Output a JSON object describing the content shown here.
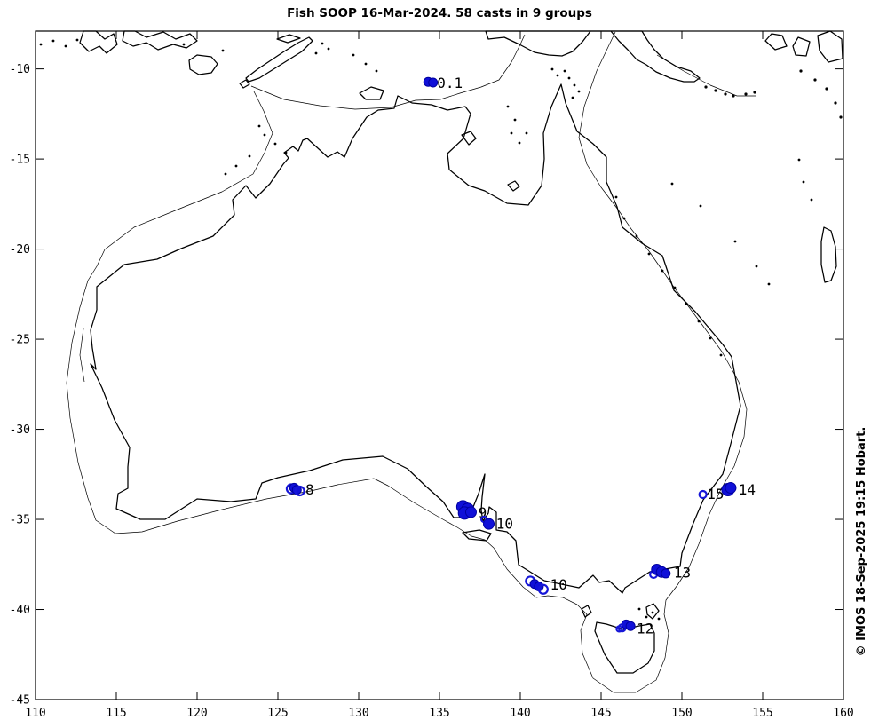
{
  "title": "Fish SOOP 16-Mar-2024. 58 casts in 9 groups",
  "credit": "© IMOS 18-Sep-2025 19:15 Hobart.",
  "chart_data": {
    "type": "scatter",
    "title": "Fish SOOP 16-Mar-2024. 58 casts in 9 groups",
    "xlabel": "",
    "ylabel": "",
    "xlim": [
      110,
      160
    ],
    "ylim": [
      -45,
      -7.9
    ],
    "xticks": [
      110,
      115,
      120,
      125,
      130,
      135,
      140,
      145,
      150,
      155,
      160
    ],
    "yticks": [
      -45,
      -40,
      -35,
      -30,
      -25,
      -20,
      -15,
      -10
    ],
    "grid": false,
    "legend": "none",
    "marker_fill_color": "#1010d8",
    "marker_edge_color": "#0000a0",
    "marker_open_color": "#1616d8",
    "label_color": "#000000",
    "groups": [
      {
        "label": "0.1",
        "label_at": [
          134.85,
          -10.78
        ],
        "points": [
          [
            134.3,
            -10.72,
            5,
            false
          ],
          [
            134.6,
            -10.76,
            5,
            false
          ]
        ]
      },
      {
        "label": "8",
        "label_at": [
          126.7,
          -33.34
        ],
        "points": [
          [
            125.82,
            -33.3,
            5,
            true
          ],
          [
            126.0,
            -33.24,
            5,
            false
          ],
          [
            126.17,
            -33.36,
            5,
            false
          ],
          [
            126.35,
            -33.42,
            5,
            true
          ]
        ]
      },
      {
        "label": "9",
        "label_at": [
          137.4,
          -34.62
        ],
        "points": [
          [
            136.45,
            -34.3,
            7,
            false
          ],
          [
            136.75,
            -34.45,
            7,
            false
          ],
          [
            136.55,
            -34.65,
            7,
            false
          ],
          [
            136.95,
            -34.6,
            6,
            false
          ]
        ]
      },
      {
        "label": "10",
        "label_at": [
          138.5,
          -35.25
        ],
        "points": [
          [
            137.75,
            -35.0,
            3,
            true
          ],
          [
            138.05,
            -35.25,
            6,
            false
          ]
        ]
      },
      {
        "label": "10",
        "label_at": [
          141.85,
          -38.62
        ],
        "points": [
          [
            140.62,
            -38.42,
            5,
            true
          ],
          [
            140.88,
            -38.58,
            5,
            false
          ],
          [
            141.15,
            -38.72,
            5,
            false
          ],
          [
            141.42,
            -38.88,
            5,
            true
          ]
        ]
      },
      {
        "label": "12",
        "label_at": [
          147.2,
          -41.05
        ],
        "points": [
          [
            146.12,
            -41.08,
            3,
            true
          ],
          [
            146.3,
            -41.02,
            4,
            true
          ],
          [
            146.55,
            -40.83,
            5,
            false
          ],
          [
            146.82,
            -40.92,
            5,
            false
          ]
        ]
      },
      {
        "label": "13",
        "label_at": [
          149.5,
          -37.95
        ],
        "points": [
          [
            148.25,
            -38.05,
            4,
            true
          ],
          [
            148.45,
            -37.78,
            6,
            false
          ],
          [
            148.75,
            -37.92,
            6,
            false
          ],
          [
            149.0,
            -38.0,
            5,
            false
          ]
        ]
      },
      {
        "label": "15",
        "label_at": [
          151.55,
          -33.6
        ],
        "points": [
          [
            151.3,
            -33.62,
            4,
            true
          ]
        ]
      },
      {
        "label": "14",
        "label_at": [
          153.5,
          -33.35
        ],
        "points": [
          [
            152.85,
            -33.35,
            7,
            false
          ],
          [
            153.02,
            -33.25,
            6,
            false
          ]
        ]
      }
    ]
  }
}
